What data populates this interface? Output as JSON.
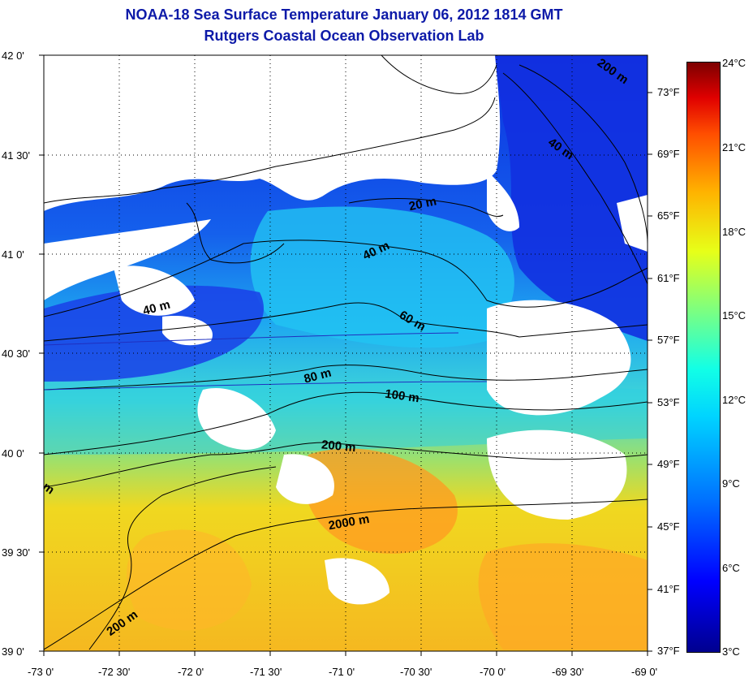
{
  "title_line1": "NOAA-18 Sea Surface Temperature January 06, 2012 1814 GMT",
  "title_line2": "Rutgers Coastal Ocean Observation Lab",
  "lat_labels": [
    "42 0'",
    "41 30'",
    "41 0'",
    "40 30'",
    "40 0'",
    "39 30'",
    "39 0'"
  ],
  "lon_labels": [
    "-73 0'",
    "-72 30'",
    "-72 0'",
    "-71 30'",
    "-71 0'",
    "-70 30'",
    "-70 0'",
    "-69 30'",
    "-69 0'"
  ],
  "fahrenheit_labels": [
    "73°F",
    "69°F",
    "65°F",
    "61°F",
    "57°F",
    "53°F",
    "49°F",
    "45°F",
    "41°F",
    "37°F"
  ],
  "celsius_labels": [
    "24°C",
    "21°C",
    "18°C",
    "15°C",
    "12°C",
    "9°C",
    "6°C",
    "3°C"
  ],
  "contour_labels": [
    "200 m",
    "40 m",
    "20 m",
    "40 m",
    "40 m",
    "60 m",
    "80 m",
    "100 m",
    "200 m",
    "2000 m",
    "200 m",
    "m"
  ],
  "colors": {
    "title": "#0d1aa8",
    "land": "#ffffff",
    "cold": "#0a2be0",
    "mid": "#1ea8f0",
    "warm": "#f5c21e",
    "hot": "#ff8a10"
  }
}
